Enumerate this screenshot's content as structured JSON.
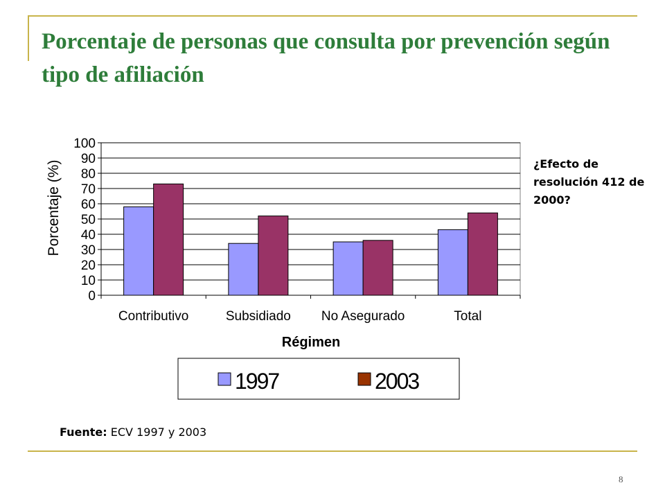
{
  "slide": {
    "title": "Porcentaje de personas que consulta por prevención según tipo de afiliación",
    "note": "¿Efecto de resolución 412 de 2000?",
    "source_label": "Fuente:",
    "source_text": "ECV 1997 y 2003",
    "page_number": "8",
    "accent_color": "#c8b44a",
    "title_color": "#2e7d3a"
  },
  "chart_data": {
    "type": "bar",
    "categories": [
      "Contributivo",
      "Subsidiado",
      "No Asegurado",
      "Total"
    ],
    "series": [
      {
        "name": "1997",
        "values": [
          58,
          34,
          35,
          43
        ],
        "color": "#9999ff"
      },
      {
        "name": "2003",
        "values": [
          73,
          52,
          36,
          54
        ],
        "color": "#993366"
      }
    ],
    "legend_swatch_colors": [
      "#9999ff",
      "#993300"
    ],
    "xlabel": "Régimen",
    "ylabel": "Porcentaje (%)",
    "ylim": [
      0,
      100
    ],
    "yticks": [
      0,
      10,
      20,
      30,
      40,
      50,
      60,
      70,
      80,
      90,
      100
    ],
    "grid": true,
    "legend_position": "bottom"
  }
}
